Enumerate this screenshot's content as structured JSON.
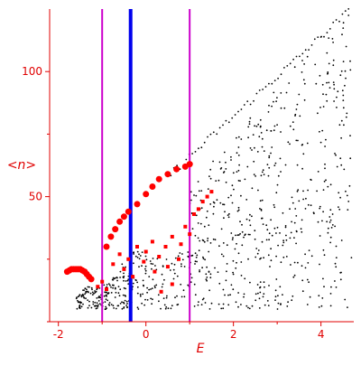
{
  "colors": {
    "axis": "#e00000",
    "primary_series": "#ff0000",
    "background_points": "#000000",
    "magenta_line": "#cc00cc",
    "blue_line": "#0000ee"
  },
  "chart_data": {
    "type": "scatter",
    "title": "",
    "xlabel": "E",
    "ylabel": "<n>",
    "xlim": [
      -2.2,
      4.75
    ],
    "ylim": [
      0,
      125
    ],
    "grid": false,
    "x_ticks": [
      -2,
      0,
      2,
      4
    ],
    "y_ticks": [
      50,
      100
    ],
    "x_tick_labels": [
      "-2",
      "0",
      "2",
      "4"
    ],
    "y_tick_labels": [
      "50",
      "100"
    ],
    "vertical_lines": [
      {
        "x": -1.0,
        "color": "magenta"
      },
      {
        "x": -0.35,
        "color": "blue"
      },
      {
        "x": 1.0,
        "color": "magenta"
      }
    ],
    "series": [
      {
        "color": "red",
        "marker": "large dots",
        "points": [
          [
            -1.8,
            20
          ],
          [
            -1.75,
            20.5
          ],
          [
            -1.7,
            21
          ],
          [
            -1.65,
            21
          ],
          [
            -1.6,
            21
          ],
          [
            -1.55,
            21
          ],
          [
            -1.5,
            21
          ],
          [
            -1.45,
            20.5
          ],
          [
            -1.4,
            20
          ],
          [
            -1.35,
            19
          ],
          [
            -1.3,
            18
          ],
          [
            -1.25,
            17
          ],
          [
            -0.9,
            30
          ],
          [
            -0.8,
            34
          ],
          [
            -0.7,
            37
          ],
          [
            -0.6,
            40
          ],
          [
            -0.5,
            42
          ],
          [
            -0.4,
            44
          ],
          [
            -0.2,
            47
          ],
          [
            0.0,
            51
          ],
          [
            0.15,
            54
          ],
          [
            0.3,
            57
          ],
          [
            0.5,
            59
          ],
          [
            0.7,
            61
          ],
          [
            0.9,
            62
          ],
          [
            1.0,
            63
          ]
        ]
      },
      {
        "color": "red",
        "marker": "small squares",
        "points": [
          [
            -1.1,
            14
          ],
          [
            -1.0,
            16
          ],
          [
            -0.9,
            13
          ],
          [
            -0.75,
            23
          ],
          [
            -0.6,
            27
          ],
          [
            -0.5,
            21
          ],
          [
            -0.4,
            25
          ],
          [
            -0.3,
            18
          ],
          [
            -0.2,
            30
          ],
          [
            -0.05,
            24
          ],
          [
            0.0,
            28
          ],
          [
            0.15,
            32
          ],
          [
            0.2,
            20
          ],
          [
            0.3,
            26
          ],
          [
            0.45,
            30
          ],
          [
            0.5,
            22
          ],
          [
            0.6,
            34
          ],
          [
            0.75,
            25
          ],
          [
            0.8,
            31
          ],
          [
            0.9,
            38
          ],
          [
            1.0,
            35
          ],
          [
            1.1,
            43
          ],
          [
            1.2,
            45
          ],
          [
            1.3,
            48
          ],
          [
            1.4,
            50
          ],
          [
            1.5,
            52
          ],
          [
            0.6,
            15
          ],
          [
            0.35,
            12
          ]
        ]
      },
      {
        "color": "black",
        "marker": "small dots",
        "description": "background scatter from about E=-2 to 4.7, rising fan"
      }
    ]
  }
}
